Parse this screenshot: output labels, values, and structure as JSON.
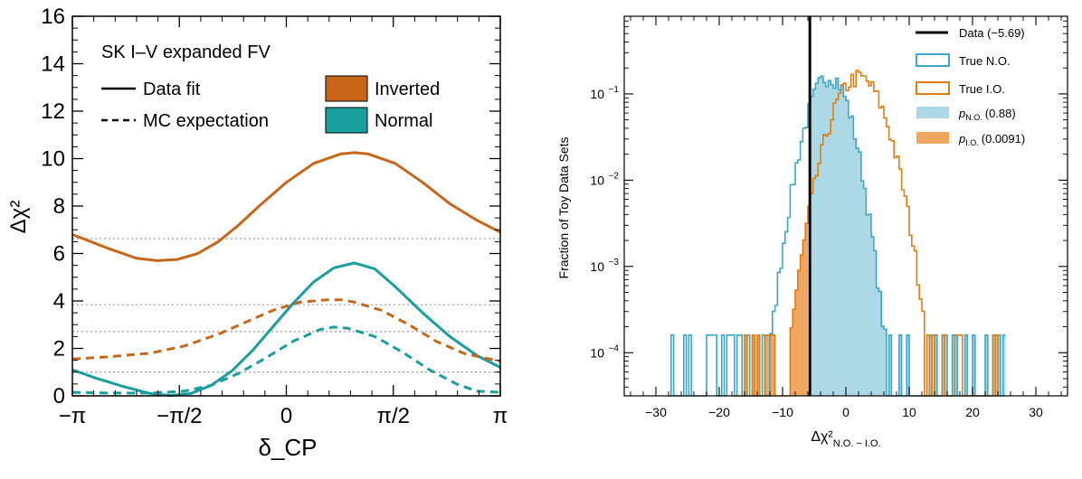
{
  "chart_data": [
    {
      "type": "line",
      "title": "",
      "xlabel": "δ_CP",
      "ylabel": "Δχ²",
      "xlim": [
        -3.14159,
        3.14159
      ],
      "ylim": [
        0,
        16
      ],
      "x_ticks": [
        -3.14159,
        -1.5708,
        0,
        1.5708,
        3.14159
      ],
      "x_tick_labels": [
        "−π",
        "−π/2",
        "0",
        "π/2",
        "π"
      ],
      "y_ticks": [
        0,
        2,
        4,
        6,
        8,
        10,
        12,
        14,
        16
      ],
      "y_tick_labels": [
        "0",
        "2",
        "4",
        "6",
        "8",
        "10",
        "12",
        "14",
        "16"
      ],
      "legend": {
        "header": "SK I–V expanded FV",
        "data_fit": "Data  fit",
        "mc_expectation": "MC expectation",
        "inverted": "Inverted",
        "normal": "Normal"
      },
      "reference_levels": [
        1.0,
        2.71,
        3.84,
        6.63
      ],
      "colors": {
        "inverted": "#c8661a",
        "normal": "#1a9e9e",
        "reference": "#999999"
      },
      "series": [
        {
          "name": "Inverted data fit",
          "style": "solid",
          "color": "#c8661a",
          "x": [
            -3.14159,
            -2.6,
            -2.2,
            -1.9,
            -1.6,
            -1.3,
            -1.0,
            -0.7,
            -0.4,
            0.0,
            0.4,
            0.8,
            1.0,
            1.2,
            1.6,
            2.0,
            2.4,
            2.8,
            3.14159
          ],
          "y": [
            6.8,
            6.2,
            5.8,
            5.7,
            5.75,
            6.0,
            6.5,
            7.2,
            8.0,
            9.0,
            9.8,
            10.2,
            10.25,
            10.2,
            9.8,
            9.0,
            8.1,
            7.4,
            6.9
          ]
        },
        {
          "name": "Normal data fit",
          "style": "solid",
          "color": "#1a9e9e",
          "x": [
            -3.14159,
            -2.8,
            -2.4,
            -2.0,
            -1.7,
            -1.4,
            -1.1,
            -0.8,
            -0.5,
            -0.2,
            0.1,
            0.4,
            0.7,
            1.0,
            1.3,
            1.6,
            2.0,
            2.4,
            2.8,
            3.14159
          ],
          "y": [
            1.1,
            0.75,
            0.4,
            0.1,
            0.02,
            0.1,
            0.45,
            1.05,
            1.9,
            2.9,
            3.9,
            4.8,
            5.4,
            5.6,
            5.35,
            4.6,
            3.5,
            2.5,
            1.7,
            1.2
          ]
        },
        {
          "name": "Inverted MC expectation",
          "style": "dashed",
          "color": "#c8661a",
          "x": [
            -3.14159,
            -2.6,
            -2.0,
            -1.5,
            -1.0,
            -0.6,
            -0.2,
            0.2,
            0.6,
            0.8,
            1.0,
            1.4,
            1.8,
            2.2,
            2.6,
            3.14159
          ],
          "y": [
            1.55,
            1.65,
            1.8,
            2.1,
            2.6,
            3.1,
            3.6,
            3.95,
            4.05,
            4.05,
            3.95,
            3.6,
            3.0,
            2.3,
            1.8,
            1.45
          ]
        },
        {
          "name": "Normal MC expectation",
          "style": "dashed",
          "color": "#1a9e9e",
          "x": [
            -3.14159,
            -2.6,
            -2.0,
            -1.5,
            -1.1,
            -0.7,
            -0.3,
            0.1,
            0.5,
            0.7,
            0.9,
            1.3,
            1.7,
            2.1,
            2.5,
            2.8,
            3.14159
          ],
          "y": [
            0.15,
            0.12,
            0.12,
            0.2,
            0.45,
            0.95,
            1.6,
            2.3,
            2.8,
            2.9,
            2.85,
            2.5,
            1.85,
            1.1,
            0.5,
            0.2,
            0.15
          ]
        }
      ]
    },
    {
      "type": "histogram",
      "title": "",
      "xlabel": "Δχ²",
      "xlabel_sub": "N.O. − I.O.",
      "ylabel": "Fraction of Toy Data Sets",
      "xlim": [
        -35,
        35
      ],
      "ylim_log": [
        -4.5,
        -0.1
      ],
      "x_ticks": [
        -30,
        -20,
        -10,
        0,
        10,
        20,
        30
      ],
      "x_tick_labels": [
        "−30",
        "−20",
        "−10",
        "0",
        "10",
        "20",
        "30"
      ],
      "y_ticks_log": [
        -4,
        -3,
        -2,
        -1
      ],
      "y_tick_labels": [
        "10",
        "10",
        "10",
        "10"
      ],
      "y_tick_exponents": [
        "−4",
        "−3",
        "−2",
        "−1"
      ],
      "data_value": -5.69,
      "legend": {
        "data": "Data (−5.69)",
        "true_no": "True N.O.",
        "true_io": "True I.O.",
        "p_no_symbol": "p",
        "p_no_sub": "N.O.",
        "p_no_val": "(0.88)",
        "p_io_symbol": "p",
        "p_io_sub": "I.O.",
        "p_io_val": "(0.0091)"
      },
      "colors": {
        "true_no": "#3ba7c9",
        "true_io": "#e07d10",
        "fill_no": "#add8e6",
        "fill_io": "#f0a860",
        "data_line": "#000000"
      },
      "series": [
        {
          "name": "True N.O.",
          "center": -1.5,
          "sigma": 2.7,
          "alpha": -0.8,
          "peak": 0.14,
          "range": [
            -28,
            25
          ]
        },
        {
          "name": "True I.O.",
          "center": 1.8,
          "sigma": 2.9,
          "alpha": 0.0,
          "peak": 0.155,
          "range": [
            -18,
            24
          ]
        }
      ]
    }
  ]
}
